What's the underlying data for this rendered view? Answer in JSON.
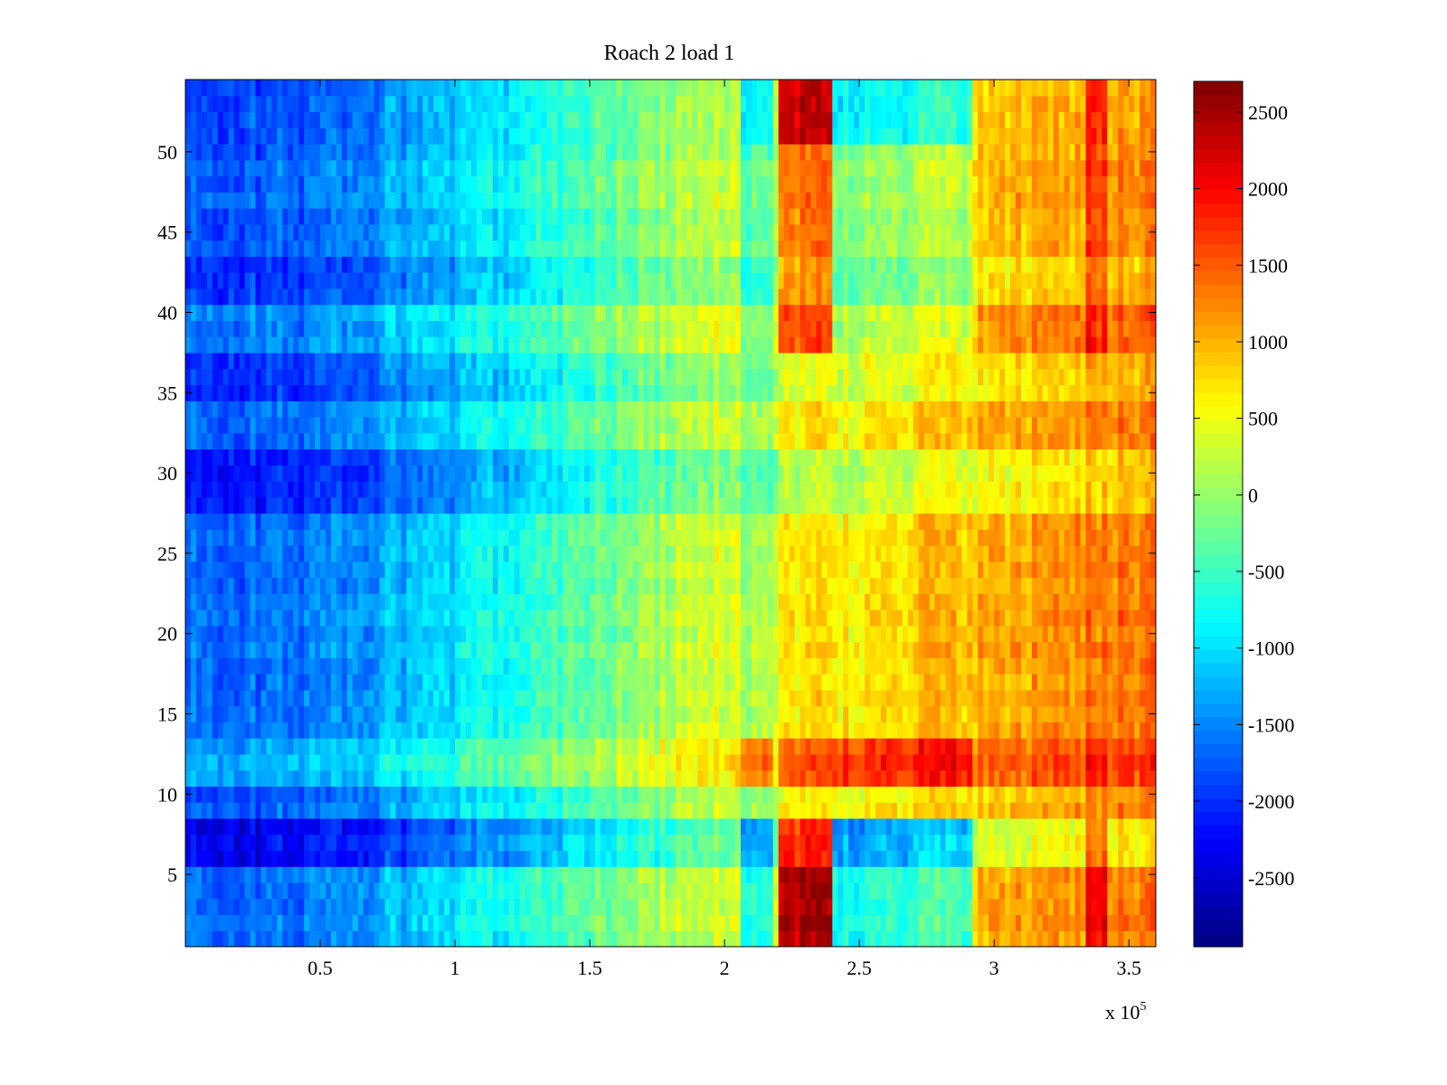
{
  "chart_data": {
    "type": "heatmap",
    "title": "Roach 2 load 1",
    "xlabel": "",
    "ylabel": "",
    "xlim": [
      0,
      360000
    ],
    "ylim": [
      0.5,
      54.5
    ],
    "x_ticks": [
      50000,
      100000,
      150000,
      200000,
      250000,
      300000,
      350000
    ],
    "x_tick_labels": [
      "0.5",
      "1",
      "1.5",
      "2",
      "2.5",
      "3",
      "3.5"
    ],
    "x_exponent": {
      "base": "x 10",
      "power": "5"
    },
    "y_ticks": [
      5,
      10,
      15,
      20,
      25,
      30,
      35,
      40,
      45,
      50
    ],
    "y_tick_labels": [
      "5",
      "10",
      "15",
      "20",
      "25",
      "30",
      "35",
      "40",
      "45",
      "50"
    ],
    "rows": 54,
    "colormap": "jet",
    "colorbar": {
      "range": [
        -2950,
        2700
      ],
      "ticks": [
        -2500,
        -2000,
        -1500,
        -1000,
        -500,
        0,
        500,
        1000,
        1500,
        2000,
        2500
      ],
      "tick_labels": [
        "-2500",
        "-2000",
        "-1500",
        "-1000",
        "-500",
        "0",
        "500",
        "1000",
        "1500",
        "2000",
        "2500"
      ]
    },
    "baseline_profile": {
      "x": [
        0,
        20000,
        50000,
        100000,
        150000,
        200000,
        250000,
        300000,
        340000,
        360000
      ],
      "value": [
        -1700,
        -1650,
        -1550,
        -1000,
        -250,
        400,
        650,
        1000,
        1300,
        1350
      ]
    },
    "row_groups": [
      {
        "rows": [
          1,
          5
        ],
        "effect": "strong",
        "offset": 0
      },
      {
        "rows": [
          6,
          8
        ],
        "effect": "strong",
        "offset": -700
      },
      {
        "rows": [
          9,
          10
        ],
        "effect": "mild",
        "offset": -150
      },
      {
        "rows": [
          11,
          13
        ],
        "effect": "high",
        "offset": 350
      },
      {
        "rows": [
          14,
          27
        ],
        "effect": "mild",
        "offset": 0
      },
      {
        "rows": [
          28,
          31
        ],
        "effect": "mild",
        "offset": -450
      },
      {
        "rows": [
          32,
          34
        ],
        "effect": "mild",
        "offset": -100
      },
      {
        "rows": [
          35,
          37
        ],
        "effect": "mild",
        "offset": -350
      },
      {
        "rows": [
          38,
          40
        ],
        "effect": "moderate",
        "offset": 100
      },
      {
        "rows": [
          41,
          43
        ],
        "effect": "moderate",
        "offset": -300
      },
      {
        "rows": [
          44,
          50
        ],
        "effect": "moderate",
        "offset": -100
      },
      {
        "rows": [
          51,
          54
        ],
        "effect": "strong",
        "offset": -250
      }
    ],
    "bands": [
      {
        "x_range": [
          206000,
          218000
        ],
        "strong": -1100,
        "mild": -350,
        "moderate": -700,
        "high": 500
      },
      {
        "x_range": [
          220000,
          240000
        ],
        "strong": 1900,
        "mild": 150,
        "moderate": 900,
        "high": 600
      },
      {
        "x_range": [
          240000,
          292000
        ],
        "strong": -1300,
        "mild": 50,
        "moderate": -600,
        "high": 700
      },
      {
        "x_range": [
          335000,
          342000
        ],
        "strong": 800,
        "mild": 100,
        "moderate": 500,
        "high": 300
      }
    ]
  }
}
